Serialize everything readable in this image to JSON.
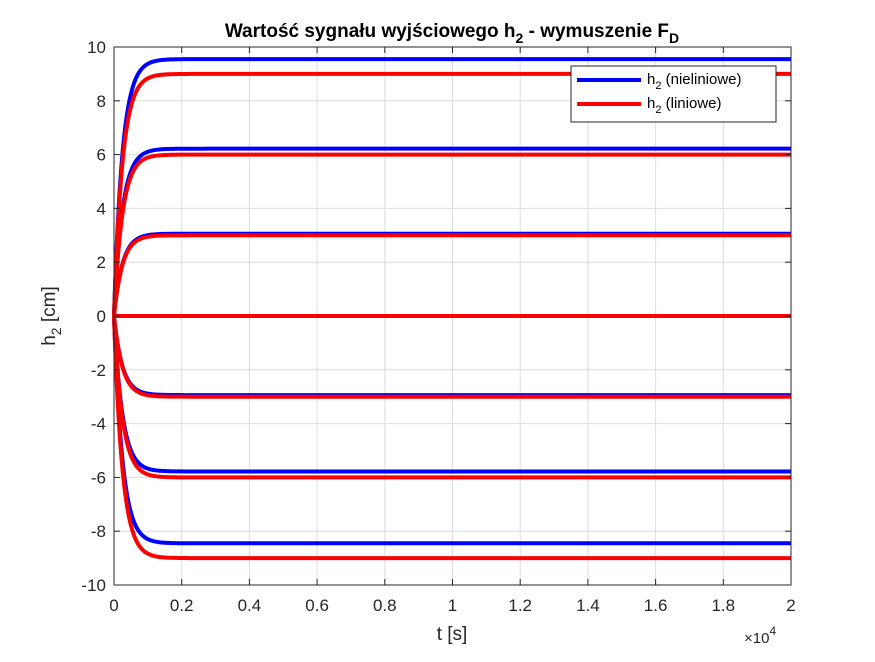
{
  "chart_data": {
    "type": "line",
    "title_main": "Wartość sygnału wyjściowego h",
    "title_sub1": "2",
    "title_mid": " - wymuszenie F",
    "title_sub2": "D",
    "xlabel": "t [s]",
    "ylabel_main": "h",
    "ylabel_sub": "2",
    "ylabel_unit": " [cm]",
    "x_multiplier": "×10",
    "x_multiplier_exp": "4",
    "xlim": [
      0,
      20000
    ],
    "ylim": [
      -10,
      10
    ],
    "grid": true,
    "legend_placement": "top-right",
    "xticks": [
      0,
      2000,
      4000,
      6000,
      8000,
      10000,
      12000,
      14000,
      16000,
      18000,
      20000
    ],
    "xtick_labels": [
      "0",
      "0.2",
      "0.4",
      "0.6",
      "0.8",
      "1",
      "1.2",
      "1.4",
      "1.6",
      "1.8",
      "2"
    ],
    "yticks": [
      10,
      8,
      6,
      4,
      2,
      0,
      -2,
      -4,
      -6,
      -8,
      -10
    ],
    "ytick_labels": [
      "10",
      "8",
      "6",
      "4",
      "2",
      "0",
      "-2",
      "-4",
      "-6",
      "-8",
      "-10"
    ],
    "time_constant_s": 250,
    "series": [
      {
        "name_main": "h",
        "name_sub": "2",
        "name_rest": " (nieliniowe)",
        "color": "#0000ff",
        "steady_states": [
          9.55,
          6.22,
          3.06,
          0,
          -2.94,
          -5.78,
          -8.45
        ]
      },
      {
        "name_main": "h",
        "name_sub": "2",
        "name_rest": " (liniowe)",
        "color": "#ff0000",
        "steady_states": [
          9.0,
          6.0,
          3.0,
          0,
          -3.0,
          -6.0,
          -9.0
        ]
      }
    ]
  }
}
